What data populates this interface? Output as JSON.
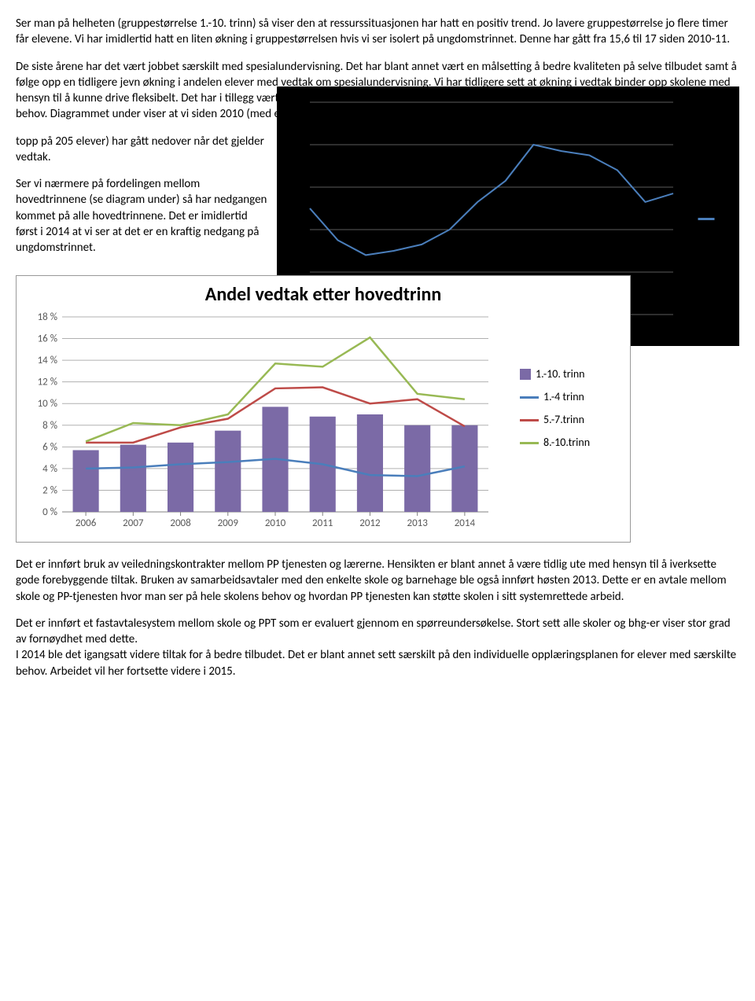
{
  "paragraphs": {
    "p1": "Ser man på helheten (gruppestørrelse 1.-10. trinn) så viser den at ressurssituasjonen har hatt en positiv trend. Jo lavere gruppestørrelse jo flere timer får elevene. Vi har imidlertid hatt en liten økning i gruppestørrelsen hvis vi ser isolert på ungdomstrinnet. Denne har gått fra 15,6 til 17 siden 2010-11.",
    "p2": "De siste årene har det vært jobbet særskilt med spesialundervisning. Det har blant annet vært en målsetting å bedre kvaliteten på selve tilbudet samt å følge opp en tidligere jevn økning i andelen elever med vedtak om spesialundervisning. Vi har tidligere sett at økning i vedtak binder opp skolene med hensyn til å kunne drive fleksibelt. Det har i tillegg vært målsetting å legge vekt på tilpasset opplæring som «metode» for å hjelpe elever med særskilte behov. Diagrammet under viser at vi siden 2010 (med en",
    "p3a": "topp på 205 elever) har gått nedover når det gjelder vedtak.",
    "p3b": "Ser vi nærmere på fordelingen mellom hovedtrinnene (se diagram under)  så har nedgangen kommet på alle hovedtrinnene. Det er imidlertid først i 2014 at vi ser at det er en kraftig nedgang på ungdomstrinnet.",
    "p4": "Det er innført bruk av veiledningskontrakter mellom PP tjenesten og lærerne. Hensikten er blant annet å være tidlig ute med hensyn til å iverksette gode forebyggende tiltak. Bruken av samarbeidsavtaler med den enkelte skole og barnehage ble også innført høsten 2013. Dette er en avtale mellom skole og PP-tjenesten hvor man ser på hele skolens behov og hvordan PP tjenesten kan støtte skolen i sitt systemrettede arbeid.",
    "p5": "Det er innført et fastavtalesystem mellom skole og PPT som er evaluert gjennom en spørreundersøkelse. Stort sett alle skoler og bhg-er viser stor grad av fornøydhet med dette.",
    "p6": "I 2014 ble det igangsatt videre tiltak for å bedre tilbudet. Det er blant annet sett særskilt på den individuelle opplæringsplanen for elever med særskilte behov. Arbeidet vil her fortsette videre i 2015."
  },
  "dark_chart": {
    "type": "line",
    "background_color": "#000000",
    "line_color": "#4a7ebb",
    "line_width": 2,
    "grid_color": "#5b5b5b",
    "points_y": [
      0.5,
      0.65,
      0.72,
      0.7,
      0.67,
      0.6,
      0.47,
      0.37,
      0.2,
      0.23,
      0.25,
      0.32,
      0.47,
      0.43
    ]
  },
  "main_chart": {
    "type": "bar-line-combo",
    "title": "Andel vedtak etter hovedtrinn",
    "title_fontsize": 24,
    "background_color": "#ffffff",
    "border_color": "#999999",
    "grid_color": "#b0b0b0",
    "axis_color": "#808080",
    "tick_fontsize": 13,
    "categories": [
      "2006",
      "2007",
      "2008",
      "2009",
      "2010",
      "2011",
      "2012",
      "2013",
      "2014"
    ],
    "y_ticks": [
      "0 %",
      "2 %",
      "4 %",
      "6 %",
      "8 %",
      "10 %",
      "12 %",
      "14 %",
      "16 %",
      "18 %"
    ],
    "y_max": 18,
    "y_step": 2,
    "series": {
      "bars": {
        "label": "1.-10. trinn",
        "color": "#7b6aa6",
        "values": [
          5.7,
          6.2,
          6.4,
          7.5,
          9.7,
          8.8,
          9.0,
          8.0,
          8.0
        ],
        "bar_width": 0.55
      },
      "line1": {
        "label": "1.-4 trinn",
        "color": "#4a7ebb",
        "width": 2.5,
        "values": [
          4.0,
          4.1,
          4.4,
          4.6,
          4.9,
          4.4,
          3.4,
          3.3,
          4.2
        ]
      },
      "line2": {
        "label": "5.-7.trinn",
        "color": "#be4b48",
        "width": 2.5,
        "values": [
          6.4,
          6.4,
          7.8,
          8.6,
          11.4,
          11.5,
          10.0,
          10.4,
          7.9
        ]
      },
      "line3": {
        "label": "8.-10.trinn",
        "color": "#98b954",
        "width": 2.5,
        "values": [
          6.5,
          8.2,
          8.0,
          9.0,
          13.7,
          13.4,
          16.1,
          10.9,
          10.4
        ]
      }
    },
    "legend": {
      "fontsize": 14,
      "items": [
        {
          "kind": "bar",
          "key": "bars"
        },
        {
          "kind": "line",
          "key": "line1"
        },
        {
          "kind": "line",
          "key": "line2"
        },
        {
          "kind": "line",
          "key": "line3"
        }
      ]
    }
  }
}
